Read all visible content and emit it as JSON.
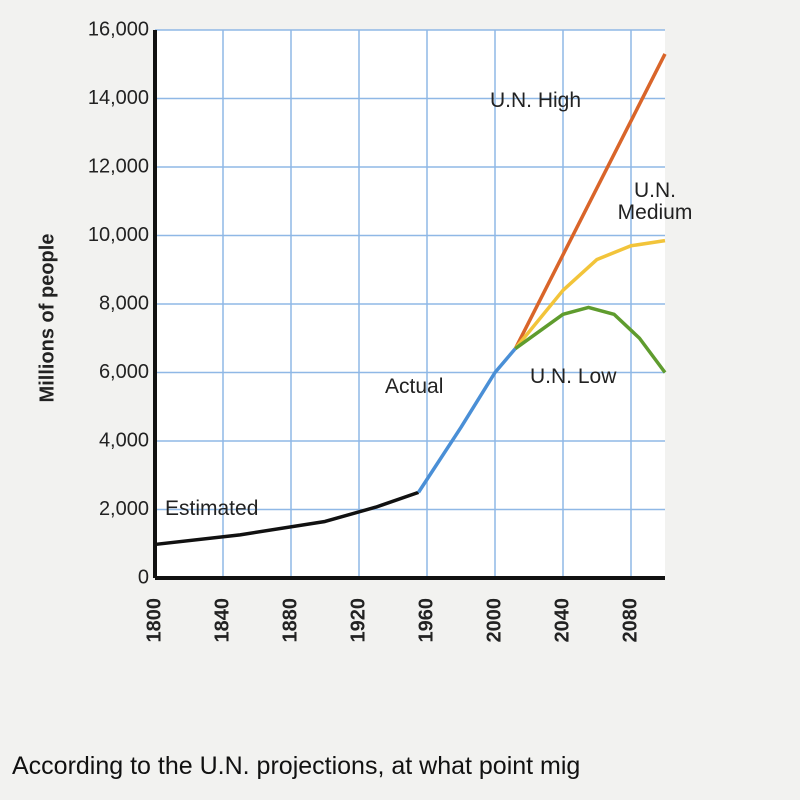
{
  "chart_data": {
    "type": "line",
    "y_label": "Millions of people",
    "xlim": [
      1800,
      2100
    ],
    "xticks": [
      1800,
      1840,
      1880,
      1920,
      1960,
      2000,
      2040,
      2080
    ],
    "ylim": [
      0,
      16000
    ],
    "yticks": [
      0,
      {
        "value": 2000,
        "label": "2,000"
      },
      {
        "value": 4000,
        "label": "4,000"
      },
      {
        "value": 6000,
        "label": "6,000"
      },
      {
        "value": 8000,
        "label": "8,000"
      },
      {
        "value": 10000,
        "label": "10,000"
      },
      {
        "value": 12000,
        "label": "12,000"
      },
      {
        "value": 14000,
        "label": "14,000"
      },
      {
        "value": 16000,
        "label": "16,000"
      }
    ],
    "grid": true,
    "series": [
      {
        "name": "Estimated",
        "color": "#111111",
        "x": [
          1800,
          1850,
          1900,
          1930,
          1955
        ],
        "values": [
          980,
          1260,
          1650,
          2070,
          2500
        ]
      },
      {
        "name": "Actual",
        "color": "#4a8fd6",
        "x": [
          1955,
          1980,
          2000,
          2012
        ],
        "values": [
          2500,
          4400,
          6000,
          6700
        ]
      },
      {
        "name": "U.N. High",
        "color": "#d9652a",
        "x": [
          2012,
          2100
        ],
        "values": [
          6700,
          15300
        ]
      },
      {
        "name": "U.N. Medium",
        "color": "#f2c43a",
        "x": [
          2012,
          2040,
          2060,
          2080,
          2100
        ],
        "values": [
          6700,
          8400,
          9300,
          9700,
          9850
        ]
      },
      {
        "name": "U.N. Low",
        "color": "#5f9c2e",
        "x": [
          2012,
          2040,
          2055,
          2070,
          2085,
          2100
        ],
        "values": [
          6700,
          7700,
          7900,
          7700,
          7000,
          6000
        ]
      }
    ]
  },
  "question": "According to the U.N. projections, at what point mig"
}
